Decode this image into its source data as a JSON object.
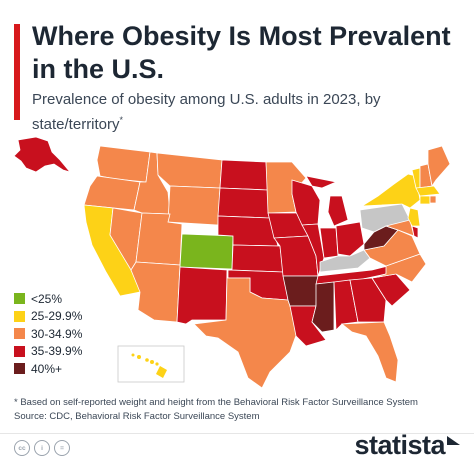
{
  "header": {
    "title": "Where Obesity Is Most Prevalent in the U.S.",
    "subtitle": "Prevalence of obesity among U.S. adults in 2023, by state/territory",
    "subtitle_mark": "*"
  },
  "legend": {
    "items": [
      {
        "label": "<25%",
        "color": "#7ab51d"
      },
      {
        "label": "25-29.9%",
        "color": "#fdd217"
      },
      {
        "label": "30-34.9%",
        "color": "#f4874b"
      },
      {
        "label": "35-39.9%",
        "color": "#c8101e"
      },
      {
        "label": "40%+",
        "color": "#6b1d1d"
      }
    ],
    "no_data_color": "#c6c6c6"
  },
  "footnote": {
    "note": "* Based on self-reported weight and height from the Behavioral Risk Factor Surveillance System",
    "source": "Source: CDC, Behavioral Risk Factor Surveillance System"
  },
  "footer": {
    "brand": "statista",
    "license_icons": [
      "cc-icon",
      "by-icon",
      "nd-icon"
    ],
    "license_glyphs": [
      "cc",
      "i",
      "="
    ]
  }
}
